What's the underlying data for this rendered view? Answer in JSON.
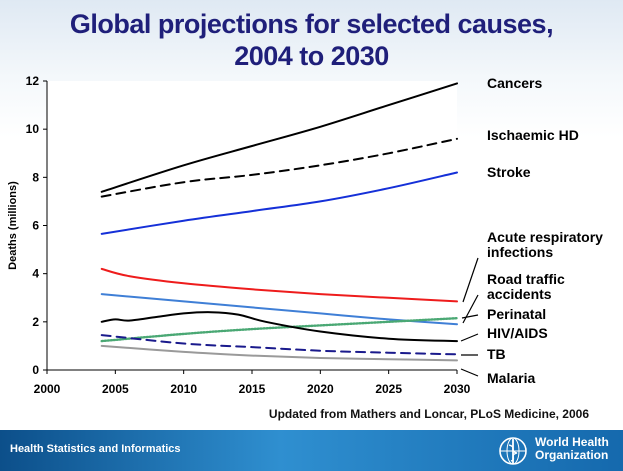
{
  "title_line1": "Global projections for selected causes,",
  "title_line2": "2004 to 2030",
  "source": "Updated from Mathers and Loncar, PLoS Medicine,  2006",
  "footer": {
    "left_text": "Health Statistics and Informatics",
    "org_line1": "World Health",
    "org_line2": "Organization"
  },
  "chart_data": {
    "type": "line",
    "ylabel": "Deaths (millions)",
    "xlim": [
      2000,
      2030
    ],
    "ylim": [
      0,
      12
    ],
    "xticks": [
      2000,
      2005,
      2010,
      2015,
      2020,
      2025,
      2030
    ],
    "yticks": [
      0,
      2,
      4,
      6,
      8,
      10,
      12
    ],
    "grid": false,
    "legend": "right-side labels",
    "series": [
      {
        "name": "Cancers",
        "color": "#000000",
        "dash": false,
        "x": [
          2004,
          2010,
          2015,
          2020,
          2025,
          2030
        ],
        "y": [
          7.4,
          8.5,
          9.3,
          10.1,
          11.0,
          11.9
        ]
      },
      {
        "name": "Ischaemic HD",
        "color": "#000000",
        "dash": true,
        "x": [
          2004,
          2010,
          2015,
          2020,
          2025,
          2030
        ],
        "y": [
          7.2,
          7.8,
          8.1,
          8.5,
          9.0,
          9.6
        ]
      },
      {
        "name": "Stroke",
        "color": "#1530d8",
        "dash": false,
        "x": [
          2004,
          2010,
          2015,
          2020,
          2025,
          2030
        ],
        "y": [
          5.65,
          6.2,
          6.6,
          7.0,
          7.55,
          8.2
        ]
      },
      {
        "name": "Acute respiratory infections",
        "color": "#ee1c1c",
        "dash": false,
        "x": [
          2004,
          2006,
          2010,
          2015,
          2020,
          2025,
          2030
        ],
        "y": [
          4.2,
          3.9,
          3.6,
          3.35,
          3.15,
          3.0,
          2.85
        ]
      },
      {
        "name": "Road traffic accidents",
        "color": "#3f7fd6",
        "dash": false,
        "x": [
          2004,
          2010,
          2015,
          2020,
          2025,
          2030
        ],
        "y": [
          3.15,
          2.85,
          2.6,
          2.35,
          2.1,
          1.9
        ]
      },
      {
        "name": "Perinatal",
        "color": "#4aa874",
        "dash": false,
        "x": [
          2004,
          2010,
          2015,
          2020,
          2025,
          2030
        ],
        "y": [
          1.2,
          1.5,
          1.7,
          1.85,
          2.0,
          2.15
        ]
      },
      {
        "name": "HIV/AIDS",
        "color": "#000000",
        "dash": false,
        "x": [
          2004,
          2005,
          2006,
          2008,
          2010,
          2012,
          2014,
          2016,
          2020,
          2025,
          2030
        ],
        "y": [
          2.0,
          2.1,
          2.05,
          2.2,
          2.35,
          2.4,
          2.3,
          2.0,
          1.6,
          1.3,
          1.2
        ]
      },
      {
        "name": "TB",
        "color": "#1a1a8c",
        "dash": true,
        "x": [
          2004,
          2010,
          2015,
          2020,
          2025,
          2030
        ],
        "y": [
          1.45,
          1.1,
          0.95,
          0.8,
          0.72,
          0.65
        ]
      },
      {
        "name": "Malaria",
        "color": "#9a9a9a",
        "dash": false,
        "x": [
          2004,
          2010,
          2015,
          2020,
          2025,
          2030
        ],
        "y": [
          1.0,
          0.75,
          0.6,
          0.5,
          0.45,
          0.4
        ]
      }
    ],
    "labels": {
      "Cancers": "Cancers",
      "Ischaemic HD": "Ischaemic HD",
      "Stroke": "Stroke",
      "Acute respiratory infections": [
        "Acute respiratory",
        "infections"
      ],
      "Road traffic accidents": [
        "Road traffic",
        "accidents"
      ],
      "Perinatal": "Perinatal",
      "HIV/AIDS": "HIV/AIDS",
      "TB": "TB",
      "Malaria": "Malaria"
    }
  }
}
